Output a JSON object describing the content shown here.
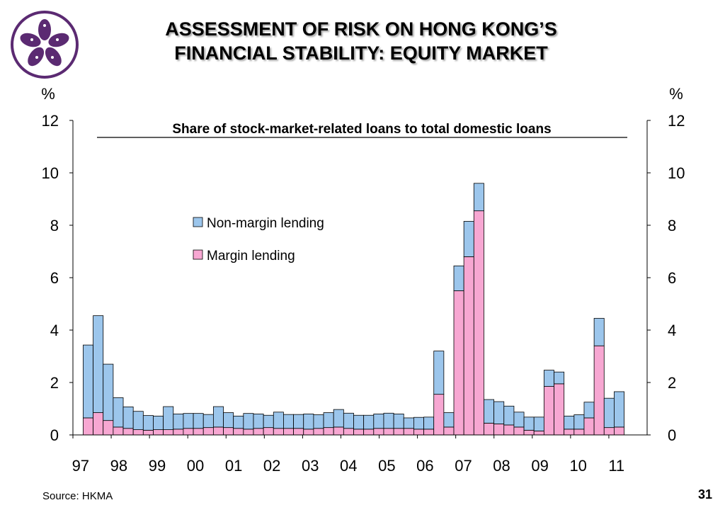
{
  "slide": {
    "title_line1": "ASSESSMENT OF RISK ON HONG KONG’S",
    "title_line2": "FINANCIAL STABILITY: EQUITY MARKET",
    "source": "Source: HKMA",
    "page_number": "31"
  },
  "colors": {
    "non_margin": "#9cc6ec",
    "margin": "#f7a7d2",
    "logo": "#5b2a72"
  },
  "chart_data": {
    "type": "bar",
    "stacked": true,
    "title": "Share of stock-market-related loans to total domestic loans",
    "left_unit": "%",
    "right_unit": "%",
    "ylim": [
      0,
      12
    ],
    "y_ticks": [
      "0",
      "2",
      "4",
      "6",
      "8",
      "10",
      "12"
    ],
    "x_tick_labels": [
      "97",
      "98",
      "99",
      "00",
      "01",
      "02",
      "03",
      "04",
      "05",
      "06",
      "07",
      "08",
      "09",
      "10",
      "11"
    ],
    "legend": [
      "Non-margin lending",
      "Margin lending"
    ],
    "legend_position": "center-left",
    "grid": false,
    "series": [
      {
        "name": "Margin lending",
        "values": [
          0.65,
          0.85,
          0.55,
          0.3,
          0.25,
          0.2,
          0.18,
          0.2,
          0.2,
          0.22,
          0.25,
          0.25,
          0.28,
          0.3,
          0.28,
          0.25,
          0.22,
          0.25,
          0.28,
          0.25,
          0.25,
          0.25,
          0.22,
          0.25,
          0.28,
          0.3,
          0.25,
          0.22,
          0.22,
          0.25,
          0.25,
          0.25,
          0.25,
          0.22,
          0.22,
          1.55,
          0.3,
          5.5,
          6.8,
          8.55,
          0.45,
          0.42,
          0.38,
          0.3,
          0.18,
          0.15,
          1.85,
          1.95,
          0.22,
          0.22,
          0.65,
          3.4,
          0.28,
          0.3
        ]
      },
      {
        "name": "Non-margin lending",
        "values": [
          2.78,
          3.7,
          2.15,
          1.12,
          0.82,
          0.7,
          0.56,
          0.52,
          0.88,
          0.58,
          0.57,
          0.57,
          0.5,
          0.78,
          0.57,
          0.47,
          0.6,
          0.55,
          0.47,
          0.62,
          0.53,
          0.53,
          0.58,
          0.52,
          0.57,
          0.67,
          0.58,
          0.53,
          0.53,
          0.55,
          0.58,
          0.55,
          0.4,
          0.45,
          0.46,
          1.65,
          0.55,
          0.95,
          1.35,
          1.05,
          0.9,
          0.85,
          0.72,
          0.57,
          0.5,
          0.53,
          0.62,
          0.45,
          0.5,
          0.55,
          0.6,
          1.05,
          1.12,
          1.35
        ]
      }
    ]
  }
}
